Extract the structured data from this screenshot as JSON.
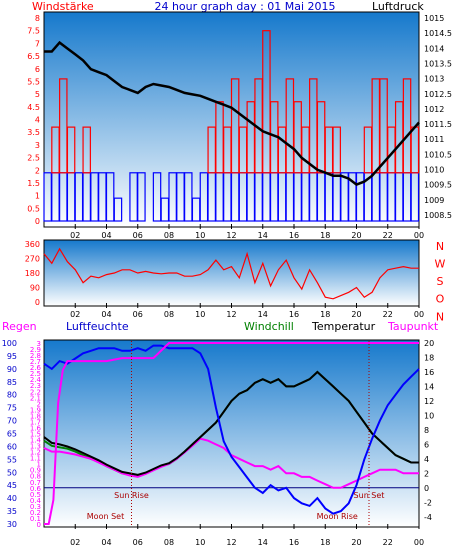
{
  "header": {
    "left_label": "Windstärke",
    "title": "24 hour graph day : 01 Mai 2015",
    "right_label": "Luftdruck"
  },
  "colors": {
    "wind_red": "#ff0000",
    "wind_blue": "#0000ff",
    "pressure_line": "#000000",
    "humidity_line": "#0000ff",
    "rain_line": "#ff00ff",
    "dewpoint_line": "#ff00ff",
    "windchill_line": "#008000",
    "temperature_line": "#000000",
    "sun_moon_label": "#aa0000",
    "plot_bg_top": "#1e8ad6",
    "plot_bg_bottom": "#ffffff"
  },
  "x_ticks": [
    "02",
    "04",
    "06",
    "08",
    "10",
    "12",
    "14",
    "16",
    "18",
    "20",
    "22",
    "00"
  ],
  "chart_data": [
    {
      "type": "line",
      "panel": "wind_pressure",
      "x_unit": "hour",
      "left_axis_label": "Windstärke",
      "right_axis_label": "Luftdruck",
      "left_ticks": [
        "8",
        "7.5",
        "7",
        "6.5",
        "6",
        "5.5",
        "5",
        "4.5",
        "4",
        "3.5",
        "3",
        "2.5",
        "2",
        "1.5",
        "1",
        "0.5",
        "0"
      ],
      "right_ticks": [
        "1015",
        "1014.5",
        "1014",
        "1013.5",
        "1013",
        "1012.5",
        "1012",
        "1011.5",
        "1011",
        "1010.5",
        "1010",
        "1009.5",
        "1009",
        "1008.5"
      ],
      "ylim_left": [
        0,
        8
      ],
      "ylim_right": [
        1008.2,
        1015.2
      ],
      "series": [
        {
          "name": "Luftdruck",
          "axis": "right",
          "x": [
            0,
            0.5,
            1,
            1.5,
            2,
            2.5,
            3,
            3.5,
            4,
            4.5,
            5,
            5.5,
            6,
            6.5,
            7,
            7.5,
            8,
            8.5,
            9,
            9.5,
            10,
            10.5,
            11,
            11.5,
            12,
            12.5,
            13,
            13.5,
            14,
            14.5,
            15,
            15.5,
            16,
            16.5,
            17,
            17.5,
            18,
            18.5,
            19,
            19.5,
            20,
            20.5,
            21,
            21.5,
            22,
            22.5,
            23,
            23.5,
            24
          ],
          "values": [
            1014.0,
            1014.0,
            1014.3,
            1014.1,
            1013.9,
            1013.7,
            1013.4,
            1013.3,
            1013.2,
            1013.0,
            1012.8,
            1012.7,
            1012.6,
            1012.8,
            1012.9,
            1012.85,
            1012.8,
            1012.7,
            1012.6,
            1012.55,
            1012.5,
            1012.4,
            1012.3,
            1012.2,
            1012.1,
            1011.9,
            1011.7,
            1011.5,
            1011.3,
            1011.2,
            1011.1,
            1010.9,
            1010.7,
            1010.4,
            1010.2,
            1010.0,
            1009.9,
            1009.8,
            1009.8,
            1009.7,
            1009.5,
            1009.6,
            1009.8,
            1010.1,
            1010.4,
            1010.7,
            1011.0,
            1011.3,
            1011.6
          ]
        },
        {
          "name": "Windstärke",
          "axis": "left",
          "x": [
            0,
            0.5,
            1,
            1.5,
            2,
            2.5,
            3,
            3.5,
            4,
            4.5,
            5,
            5.5,
            6,
            6.5,
            7,
            7.5,
            8,
            8.5,
            9,
            9.5,
            10,
            10.5,
            11,
            11.5,
            12,
            12.5,
            13,
            13.5,
            14,
            14.5,
            15,
            15.5,
            16,
            16.5,
            17,
            17.5,
            18,
            18.5,
            19,
            19.5,
            20,
            20.5,
            21,
            21.5,
            22,
            22.5,
            23,
            23.5,
            24
          ],
          "values": [
            1.9,
            3.7,
            5.6,
            3.7,
            1.9,
            3.7,
            1.9,
            1.9,
            1.9,
            0.9,
            0,
            1.9,
            1.9,
            0,
            1.9,
            0.9,
            1.9,
            1.9,
            1.9,
            0.9,
            1.9,
            3.7,
            4.7,
            3.7,
            5.6,
            3.7,
            4.7,
            5.6,
            7.5,
            4.7,
            3.7,
            5.6,
            4.7,
            3.7,
            5.6,
            4.7,
            3.7,
            3.7,
            1.9,
            1.9,
            1.9,
            3.7,
            5.6,
            5.6,
            3.7,
            4.7,
            5.6,
            3.7,
            1.9
          ]
        }
      ]
    },
    {
      "type": "line",
      "panel": "wind_direction",
      "x_unit": "hour",
      "left_ticks": [
        "360",
        "270",
        "180",
        "90",
        "0"
      ],
      "right_labels": [
        "N",
        "W",
        "S",
        "O",
        "N"
      ],
      "ylim": [
        0,
        360
      ],
      "series": [
        {
          "x": [
            0,
            0.5,
            1,
            1.5,
            2,
            2.5,
            3,
            3.5,
            4,
            4.5,
            5,
            5.5,
            6,
            6.5,
            7,
            7.5,
            8,
            8.5,
            9,
            9.5,
            10,
            10.5,
            11,
            11.5,
            12,
            12.5,
            13,
            13.5,
            14,
            14.5,
            15,
            15.5,
            16,
            16.5,
            17,
            17.5,
            18,
            18.5,
            19,
            19.5,
            20,
            20.5,
            21,
            21.5,
            22,
            22.5,
            23,
            23.5,
            24
          ],
          "values": [
            300,
            240,
            330,
            250,
            200,
            120,
            160,
            150,
            170,
            180,
            200,
            200,
            180,
            190,
            180,
            175,
            180,
            180,
            160,
            160,
            170,
            200,
            260,
            200,
            220,
            150,
            300,
            120,
            240,
            100,
            200,
            260,
            150,
            80,
            200,
            120,
            30,
            20,
            40,
            60,
            90,
            30,
            60,
            150,
            200,
            210,
            220,
            210,
            210
          ]
        }
      ]
    },
    {
      "type": "line",
      "panel": "humidity_temperature",
      "x_unit": "hour",
      "header_labels": [
        "Regen",
        "Luftfeuchte",
        "Windchill",
        "Temperatur",
        "Taupunkt"
      ],
      "rain_ticks": [
        "3",
        "2.9",
        "2.8",
        "2.7",
        "2.6",
        "2.5",
        "2.4",
        "2.3",
        "2.2",
        "2.1",
        "2",
        "1.9",
        "1.8",
        "1.7",
        "1.6",
        "1.5",
        "1.4",
        "1.3",
        "1.2",
        "1.1",
        "1",
        "0.9",
        "0.8",
        "0.7",
        "0.6",
        "0.5",
        "0.4",
        "0.3",
        "0.2",
        "0.1",
        "0"
      ],
      "humidity_ticks": [
        "100",
        "95",
        "90",
        "85",
        "80",
        "75",
        "70",
        "65",
        "60",
        "55",
        "50",
        "45",
        "40",
        "35",
        "30"
      ],
      "temperature_ticks": [
        "20",
        "18",
        "16",
        "14",
        "12",
        "10",
        "8",
        "6",
        "4",
        "2",
        "0",
        "-2",
        "-4"
      ],
      "ylim_rain": [
        0,
        3
      ],
      "ylim_humidity": [
        30,
        100
      ],
      "ylim_temperature": [
        -5,
        20
      ],
      "sun_rise_label": "Sun Rise",
      "sun_set_label": "Sun Set",
      "moon_set_label": "Moon Set",
      "moon_rise_label": "Moon Rise",
      "sun_rise_hour": 5.6,
      "sun_set_hour": 20.8,
      "moon_set_hour": 5.6,
      "moon_rise_hour": 18.0,
      "series": [
        {
          "name": "Regen",
          "axis": "rain",
          "x": [
            0,
            0.3,
            0.6,
            0.9,
            1.2,
            1.5,
            2,
            3,
            4,
            5,
            6,
            7,
            8,
            9,
            10,
            11,
            12,
            13,
            14,
            15,
            16,
            17,
            18,
            19,
            20,
            21,
            22,
            23,
            24
          ],
          "values": [
            0,
            0,
            0.4,
            2.0,
            2.55,
            2.7,
            2.7,
            2.7,
            2.7,
            2.75,
            2.75,
            2.75,
            3.0,
            3.0,
            3.0,
            3.0,
            3.0,
            3.0,
            3.0,
            3.0,
            3.0,
            3.0,
            3.0,
            3.0,
            3.0,
            3.0,
            3.0,
            3.0,
            3.0
          ]
        },
        {
          "name": "Luftfeuchte",
          "axis": "humidity",
          "x": [
            0,
            0.5,
            1,
            1.5,
            2,
            2.5,
            3,
            3.5,
            4,
            4.5,
            5,
            5.5,
            6,
            6.5,
            7,
            7.5,
            8,
            8.5,
            9,
            9.5,
            10,
            10.5,
            11,
            11.5,
            12,
            12.5,
            13,
            13.5,
            14,
            14.5,
            15,
            15.5,
            16,
            16.5,
            17,
            17.5,
            18,
            18.5,
            19,
            19.5,
            20,
            20.5,
            21,
            21.5,
            22,
            22.5,
            23,
            23.5,
            24
          ],
          "values": [
            92,
            90,
            93,
            92,
            94,
            96,
            97,
            98,
            98,
            98,
            97,
            97,
            98,
            97,
            99,
            99,
            98,
            98,
            98,
            98,
            96,
            90,
            75,
            62,
            56,
            52,
            48,
            44,
            42,
            45,
            43,
            44,
            40,
            38,
            37,
            40,
            36,
            34,
            35,
            38,
            45,
            55,
            63,
            70,
            76,
            80,
            84,
            87,
            90
          ]
        },
        {
          "name": "Windchill",
          "axis": "temperature",
          "x": [
            0,
            0.5,
            1,
            1.5,
            2,
            2.5,
            3,
            3.5,
            4,
            4.5,
            5,
            5.5,
            6,
            6.5,
            7,
            7.5,
            8,
            8.5,
            9,
            9.5,
            10,
            10.5,
            11,
            11.5,
            12,
            12.5,
            13,
            13.5,
            14,
            14.5,
            15,
            15.5,
            16,
            16.5,
            17,
            17.5,
            18,
            18.5,
            19,
            19.5,
            20,
            20.5,
            21,
            21.5,
            22,
            22.5,
            23,
            23.5,
            24
          ],
          "values": [
            6.5,
            5.8,
            5.6,
            5.4,
            5.0,
            4.5,
            4.0,
            3.6,
            3.0,
            2.5,
            2.0,
            1.8,
            1.7,
            2.0,
            2.5,
            3.0,
            3.3,
            4.0,
            5.0,
            6.0,
            7.0,
            8.0,
            9.0,
            10.5,
            12.0,
            13.0,
            13.5,
            14.5,
            15.0,
            14.5,
            15.0,
            14.0,
            14.0,
            14.5,
            15.0,
            16.0,
            15.0,
            14.0,
            13.0,
            12.0,
            10.5,
            9.0,
            7.5,
            6.5,
            5.5,
            4.5,
            4.0,
            3.5,
            3.5
          ]
        },
        {
          "name": "Temperatur",
          "axis": "temperature",
          "x": [
            0,
            0.5,
            1,
            1.5,
            2,
            2.5,
            3,
            3.5,
            4,
            4.5,
            5,
            5.5,
            6,
            6.5,
            7,
            7.5,
            8,
            8.5,
            9,
            9.5,
            10,
            10.5,
            11,
            11.5,
            12,
            12.5,
            13,
            13.5,
            14,
            14.5,
            15,
            15.5,
            16,
            16.5,
            17,
            17.5,
            18,
            18.5,
            19,
            19.5,
            20,
            20.5,
            21,
            21.5,
            22,
            22.5,
            23,
            23.5,
            24
          ],
          "values": [
            7.0,
            6.2,
            6.0,
            5.7,
            5.3,
            4.8,
            4.3,
            3.8,
            3.2,
            2.7,
            2.2,
            2.0,
            1.8,
            2.1,
            2.6,
            3.1,
            3.4,
            4.1,
            5.0,
            6.0,
            7.0,
            8.0,
            9.0,
            10.5,
            12.0,
            13.0,
            13.5,
            14.5,
            15.0,
            14.5,
            15.0,
            14.0,
            14.0,
            14.5,
            15.0,
            16.0,
            15.0,
            14.0,
            13.0,
            12.0,
            10.5,
            9.0,
            7.5,
            6.5,
            5.5,
            4.5,
            4.0,
            3.5,
            3.5
          ]
        },
        {
          "name": "Taupunkt",
          "axis": "temperature",
          "x": [
            0,
            0.5,
            1,
            1.5,
            2,
            2.5,
            3,
            3.5,
            4,
            4.5,
            5,
            5.5,
            6,
            6.5,
            7,
            7.5,
            8,
            8.5,
            9,
            9.5,
            10,
            10.5,
            11,
            11.5,
            12,
            12.5,
            13,
            13.5,
            14,
            14.5,
            15,
            15.5,
            16,
            16.5,
            17,
            17.5,
            18,
            18.5,
            19,
            19.5,
            20,
            20.5,
            21,
            21.5,
            22,
            22.5,
            23,
            23.5,
            24
          ],
          "values": [
            5.5,
            5.0,
            5.0,
            4.8,
            4.6,
            4.3,
            4.0,
            3.5,
            3.0,
            2.5,
            2.0,
            1.7,
            1.5,
            1.9,
            2.4,
            2.9,
            3.3,
            4.0,
            4.9,
            5.8,
            6.8,
            6.5,
            6.0,
            5.5,
            4.5,
            4.0,
            3.5,
            3.0,
            3.0,
            2.5,
            3.0,
            2.0,
            2.0,
            1.5,
            1.5,
            1.0,
            0.5,
            0.0,
            0.0,
            0.5,
            1.0,
            1.5,
            2.0,
            2.5,
            2.5,
            2.5,
            2.0,
            2.0,
            2.0
          ]
        }
      ]
    }
  ]
}
